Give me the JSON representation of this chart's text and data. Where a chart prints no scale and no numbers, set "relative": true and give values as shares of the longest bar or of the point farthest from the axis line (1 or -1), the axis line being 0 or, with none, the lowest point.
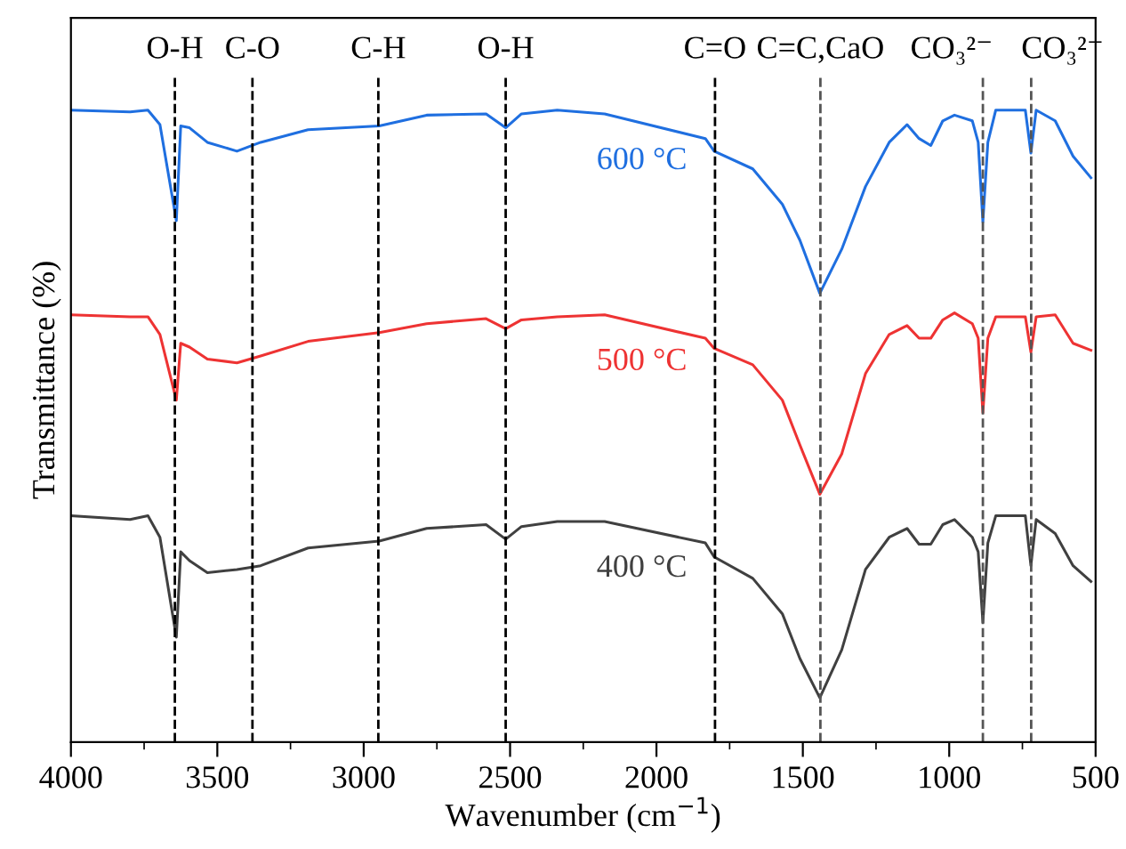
{
  "chart_data": {
    "type": "line",
    "relative": true,
    "xlabel": "Wavenumber (cm$^{−1}$)",
    "ylabel": "Transmittance (%)",
    "xlim": [
      4000,
      500
    ],
    "xticks": [
      4000,
      {
        "value": 3750,
        "label": null
      },
      3500,
      {
        "value": 3250,
        "label": null
      },
      3000,
      {
        "value": 2750,
        "label": null
      },
      2500,
      {
        "value": 2250,
        "label": null
      },
      2000,
      {
        "value": 1750,
        "label": null
      },
      1500,
      {
        "value": 1250,
        "label": null
      },
      1000,
      {
        "value": 750,
        "label": null
      },
      500
    ],
    "tick_labels": "x",
    "grid": false,
    "legend": false,
    "marker": "none",
    "line_style": "solid",
    "x": [
      4000,
      3798,
      3737,
      3696,
      3640,
      3625,
      3595,
      3534,
      3433,
      3352,
      3190,
      2947,
      2785,
      2582,
      2515,
      2461,
      2339,
      2177,
      1833,
      1803,
      1671,
      1570,
      1510,
      1442,
      1367,
      1286,
      1205,
      1144,
      1103,
      1063,
      1022,
      982,
      921,
      901,
      885,
      868,
      841,
      740,
      721,
      703,
      638,
      577,
      516
    ],
    "series": [
      {
        "name": "600 °C",
        "color": "#1f6fe0",
        "values": [
          1.0,
          0.997,
          1.0,
          0.977,
          0.825,
          0.975,
          0.972,
          0.949,
          0.935,
          0.949,
          0.969,
          0.975,
          0.992,
          0.994,
          0.972,
          0.994,
          1.0,
          0.994,
          0.955,
          0.935,
          0.907,
          0.851,
          0.794,
          0.71,
          0.78,
          0.879,
          0.949,
          0.977,
          0.955,
          0.944,
          0.983,
          0.992,
          0.983,
          0.949,
          0.823,
          0.949,
          1.0,
          1.0,
          0.932,
          1.0,
          0.983,
          0.927,
          0.893
        ]
      },
      {
        "name": "500 °C",
        "color": "#ee3333",
        "values": [
          0.676,
          0.673,
          0.673,
          0.645,
          0.541,
          0.631,
          0.625,
          0.606,
          0.6,
          0.611,
          0.634,
          0.648,
          0.662,
          0.67,
          0.654,
          0.668,
          0.673,
          0.676,
          0.639,
          0.623,
          0.597,
          0.541,
          0.47,
          0.392,
          0.456,
          0.583,
          0.645,
          0.659,
          0.639,
          0.639,
          0.668,
          0.679,
          0.662,
          0.639,
          0.521,
          0.639,
          0.673,
          0.673,
          0.617,
          0.673,
          0.676,
          0.631,
          0.62
        ]
      },
      {
        "name": "400 °C",
        "color": "#404040",
        "values": [
          0.358,
          0.352,
          0.358,
          0.324,
          0.166,
          0.301,
          0.287,
          0.268,
          0.273,
          0.279,
          0.307,
          0.318,
          0.338,
          0.344,
          0.321,
          0.341,
          0.349,
          0.349,
          0.315,
          0.293,
          0.259,
          0.203,
          0.132,
          0.07,
          0.146,
          0.273,
          0.324,
          0.338,
          0.313,
          0.313,
          0.344,
          0.352,
          0.324,
          0.301,
          0.189,
          0.315,
          0.358,
          0.358,
          0.279,
          0.352,
          0.33,
          0.279,
          0.254
        ]
      }
    ],
    "ref_lines": [
      {
        "axis": "x",
        "value": 3645,
        "label": "O-H",
        "color": "#000000",
        "line_style": "dashed"
      },
      {
        "axis": "x",
        "value": 3380,
        "label": "C-O",
        "color": "#000000",
        "line_style": "dashed"
      },
      {
        "axis": "x",
        "value": 2950,
        "label": "C-H",
        "color": "#000000",
        "line_style": "dashed"
      },
      {
        "axis": "x",
        "value": 2515,
        "label": "O-H",
        "color": "#000000",
        "line_style": "dashed"
      },
      {
        "axis": "x",
        "value": 1800,
        "label": "C=O",
        "color": "#000000",
        "line_style": "dashed"
      },
      {
        "axis": "x",
        "value": 1440,
        "label": "C=C,CaO",
        "color": "#555555",
        "line_style": "dashed"
      },
      {
        "axis": "x",
        "value": 885,
        "label": "CO₃²⁻",
        "color": "#555555",
        "line_style": "dashed"
      },
      {
        "axis": "x",
        "value": 720,
        "label": "CO₃²⁻",
        "color": "#555555",
        "line_style": "dashed"
      }
    ]
  }
}
